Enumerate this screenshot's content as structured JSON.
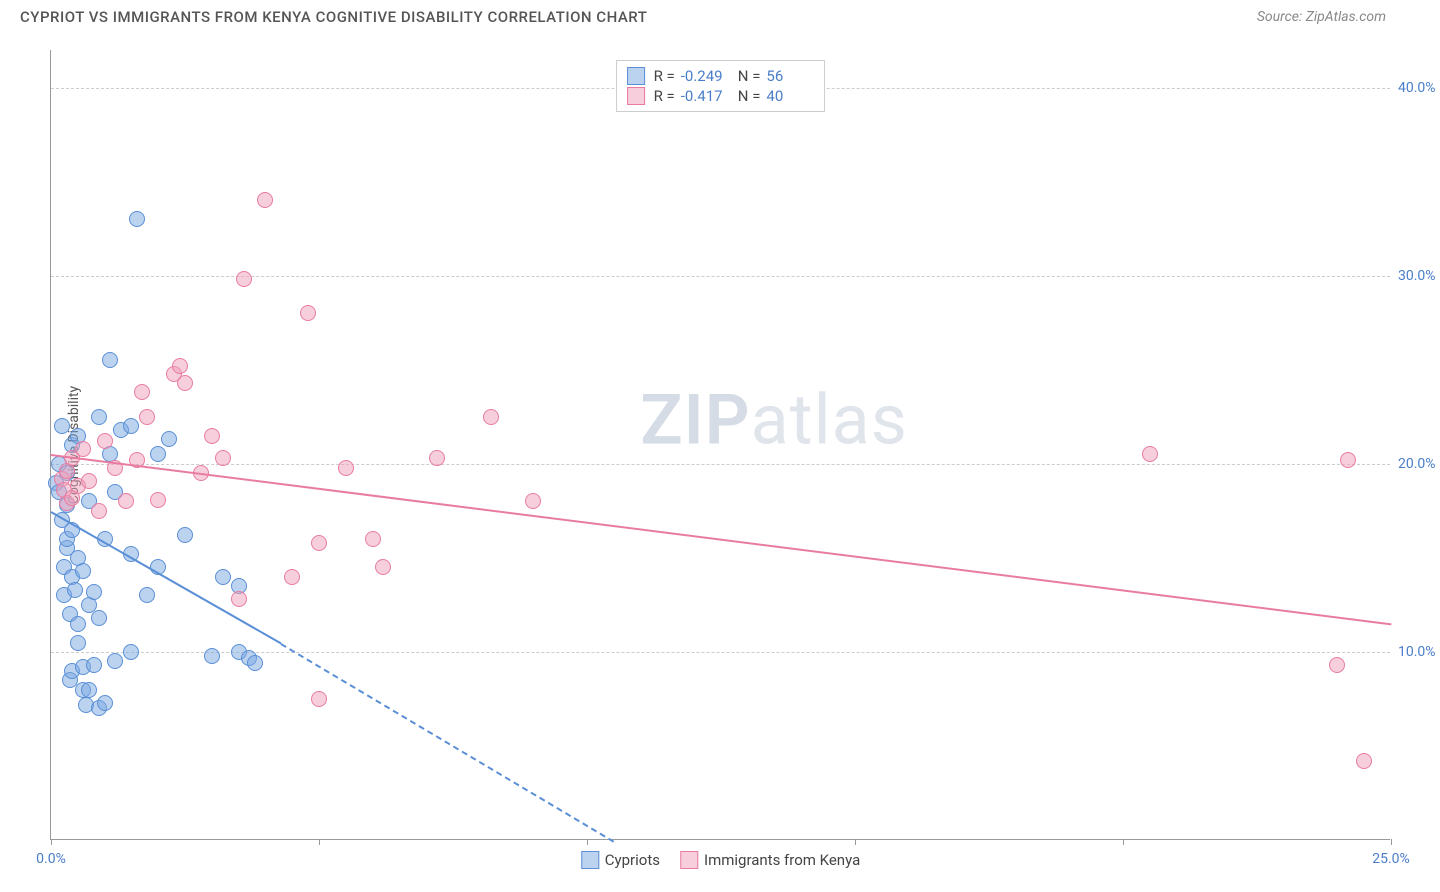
{
  "header": {
    "title": "CYPRIOT VS IMMIGRANTS FROM KENYA COGNITIVE DISABILITY CORRELATION CHART",
    "source": "Source: ZipAtlas.com"
  },
  "chart": {
    "type": "scatter",
    "ylabel": "Cognitive Disability",
    "xlim": [
      0,
      25
    ],
    "ylim": [
      0,
      42
    ],
    "yticks": [
      10,
      20,
      30,
      40
    ],
    "ytick_labels": [
      "10.0%",
      "20.0%",
      "30.0%",
      "40.0%"
    ],
    "xticks": [
      0,
      5,
      10,
      15,
      20,
      25
    ],
    "xtick_labels_shown": {
      "0": "0.0%",
      "25": "25.0%"
    },
    "grid_color": "#cccccc",
    "background_color": "#ffffff",
    "axis_color": "#999999",
    "tick_label_color": "#4a7ec9",
    "watermark": "ZIPatlas",
    "marker_radius": 8,
    "marker_opacity": 0.55,
    "marker_stroke_width": 1.5,
    "series": [
      {
        "name": "Cypriots",
        "color": "#5a8fd6",
        "fill": "rgba(121,168,226,0.5)",
        "stroke": "#5a8fd6",
        "R": "-0.249",
        "N": "56",
        "trend": {
          "x1": 0,
          "y1": 17.5,
          "x2": 4.3,
          "y2": 10.5,
          "extend_x2": 10.5,
          "extend_y2": 0
        },
        "points": [
          [
            0.1,
            19
          ],
          [
            0.15,
            18.5
          ],
          [
            0.15,
            20
          ],
          [
            0.2,
            17
          ],
          [
            0.2,
            22
          ],
          [
            0.25,
            13
          ],
          [
            0.25,
            14.5
          ],
          [
            0.3,
            15.5
          ],
          [
            0.3,
            16
          ],
          [
            0.3,
            17.8
          ],
          [
            0.3,
            19.5
          ],
          [
            0.35,
            8.5
          ],
          [
            0.35,
            12
          ],
          [
            0.4,
            9
          ],
          [
            0.4,
            14
          ],
          [
            0.4,
            16.5
          ],
          [
            0.4,
            21
          ],
          [
            0.45,
            13.3
          ],
          [
            0.5,
            10.5
          ],
          [
            0.5,
            11.5
          ],
          [
            0.5,
            15
          ],
          [
            0.5,
            21.5
          ],
          [
            0.6,
            8
          ],
          [
            0.6,
            9.2
          ],
          [
            0.6,
            14.3
          ],
          [
            0.65,
            7.2
          ],
          [
            0.7,
            8
          ],
          [
            0.7,
            12.5
          ],
          [
            0.7,
            18
          ],
          [
            0.8,
            9.3
          ],
          [
            0.8,
            13.2
          ],
          [
            0.9,
            7
          ],
          [
            0.9,
            11.8
          ],
          [
            0.9,
            22.5
          ],
          [
            1.0,
            7.3
          ],
          [
            1.0,
            16
          ],
          [
            1.1,
            20.5
          ],
          [
            1.1,
            25.5
          ],
          [
            1.2,
            9.5
          ],
          [
            1.2,
            18.5
          ],
          [
            1.3,
            21.8
          ],
          [
            1.5,
            10
          ],
          [
            1.5,
            15.2
          ],
          [
            1.5,
            22
          ],
          [
            1.6,
            33
          ],
          [
            1.8,
            13
          ],
          [
            2.0,
            14.5
          ],
          [
            2.0,
            20.5
          ],
          [
            2.2,
            21.3
          ],
          [
            2.5,
            16.2
          ],
          [
            3.0,
            9.8
          ],
          [
            3.2,
            14
          ],
          [
            3.5,
            10
          ],
          [
            3.5,
            13.5
          ],
          [
            3.7,
            9.7
          ],
          [
            3.8,
            9.4
          ]
        ]
      },
      {
        "name": "Immigrants from Kenya",
        "color": "#e87ca0",
        "fill": "rgba(240,160,185,0.5)",
        "stroke": "#e87ca0",
        "R": "-0.417",
        "N": "40",
        "trend": {
          "x1": 0,
          "y1": 20.5,
          "x2": 25,
          "y2": 11.5
        },
        "points": [
          [
            0.2,
            19.2
          ],
          [
            0.25,
            18.6
          ],
          [
            0.3,
            17.9
          ],
          [
            0.3,
            19.6
          ],
          [
            0.4,
            18.2
          ],
          [
            0.4,
            20.3
          ],
          [
            0.5,
            18.8
          ],
          [
            0.6,
            20.8
          ],
          [
            0.7,
            19.1
          ],
          [
            0.9,
            17.5
          ],
          [
            1.0,
            21.2
          ],
          [
            1.2,
            19.8
          ],
          [
            1.4,
            18
          ],
          [
            1.6,
            20.2
          ],
          [
            1.7,
            23.8
          ],
          [
            1.8,
            22.5
          ],
          [
            2.0,
            18.1
          ],
          [
            2.3,
            24.8
          ],
          [
            2.4,
            25.2
          ],
          [
            2.5,
            24.3
          ],
          [
            2.8,
            19.5
          ],
          [
            3.0,
            21.5
          ],
          [
            3.2,
            20.3
          ],
          [
            3.5,
            12.8
          ],
          [
            3.6,
            29.8
          ],
          [
            4.0,
            34
          ],
          [
            4.5,
            14
          ],
          [
            4.8,
            28
          ],
          [
            5.0,
            7.5
          ],
          [
            5.0,
            15.8
          ],
          [
            5.5,
            19.8
          ],
          [
            6.0,
            16
          ],
          [
            6.2,
            14.5
          ],
          [
            7.2,
            20.3
          ],
          [
            8.2,
            22.5
          ],
          [
            9.0,
            18
          ],
          [
            20.5,
            20.5
          ],
          [
            24.0,
            9.3
          ],
          [
            24.5,
            4.2
          ],
          [
            24.2,
            20.2
          ]
        ]
      }
    ],
    "stats_box": {
      "rows": [
        {
          "swatch_fill": "rgba(121,168,226,0.5)",
          "swatch_stroke": "#5a8fd6",
          "R_label": "R =",
          "R_val": "-0.249",
          "N_label": "N =",
          "N_val": "56"
        },
        {
          "swatch_fill": "rgba(240,160,185,0.5)",
          "swatch_stroke": "#e87ca0",
          "R_label": "R =",
          "R_val": "-0.417",
          "N_label": "N =",
          "40": "40",
          "N_val": "40"
        }
      ]
    },
    "bottom_legend": [
      {
        "swatch_fill": "rgba(121,168,226,0.5)",
        "swatch_stroke": "#5a8fd6",
        "label": "Cypriots"
      },
      {
        "swatch_fill": "rgba(240,160,185,0.5)",
        "swatch_stroke": "#e87ca0",
        "label": "Immigrants from Kenya"
      }
    ]
  }
}
